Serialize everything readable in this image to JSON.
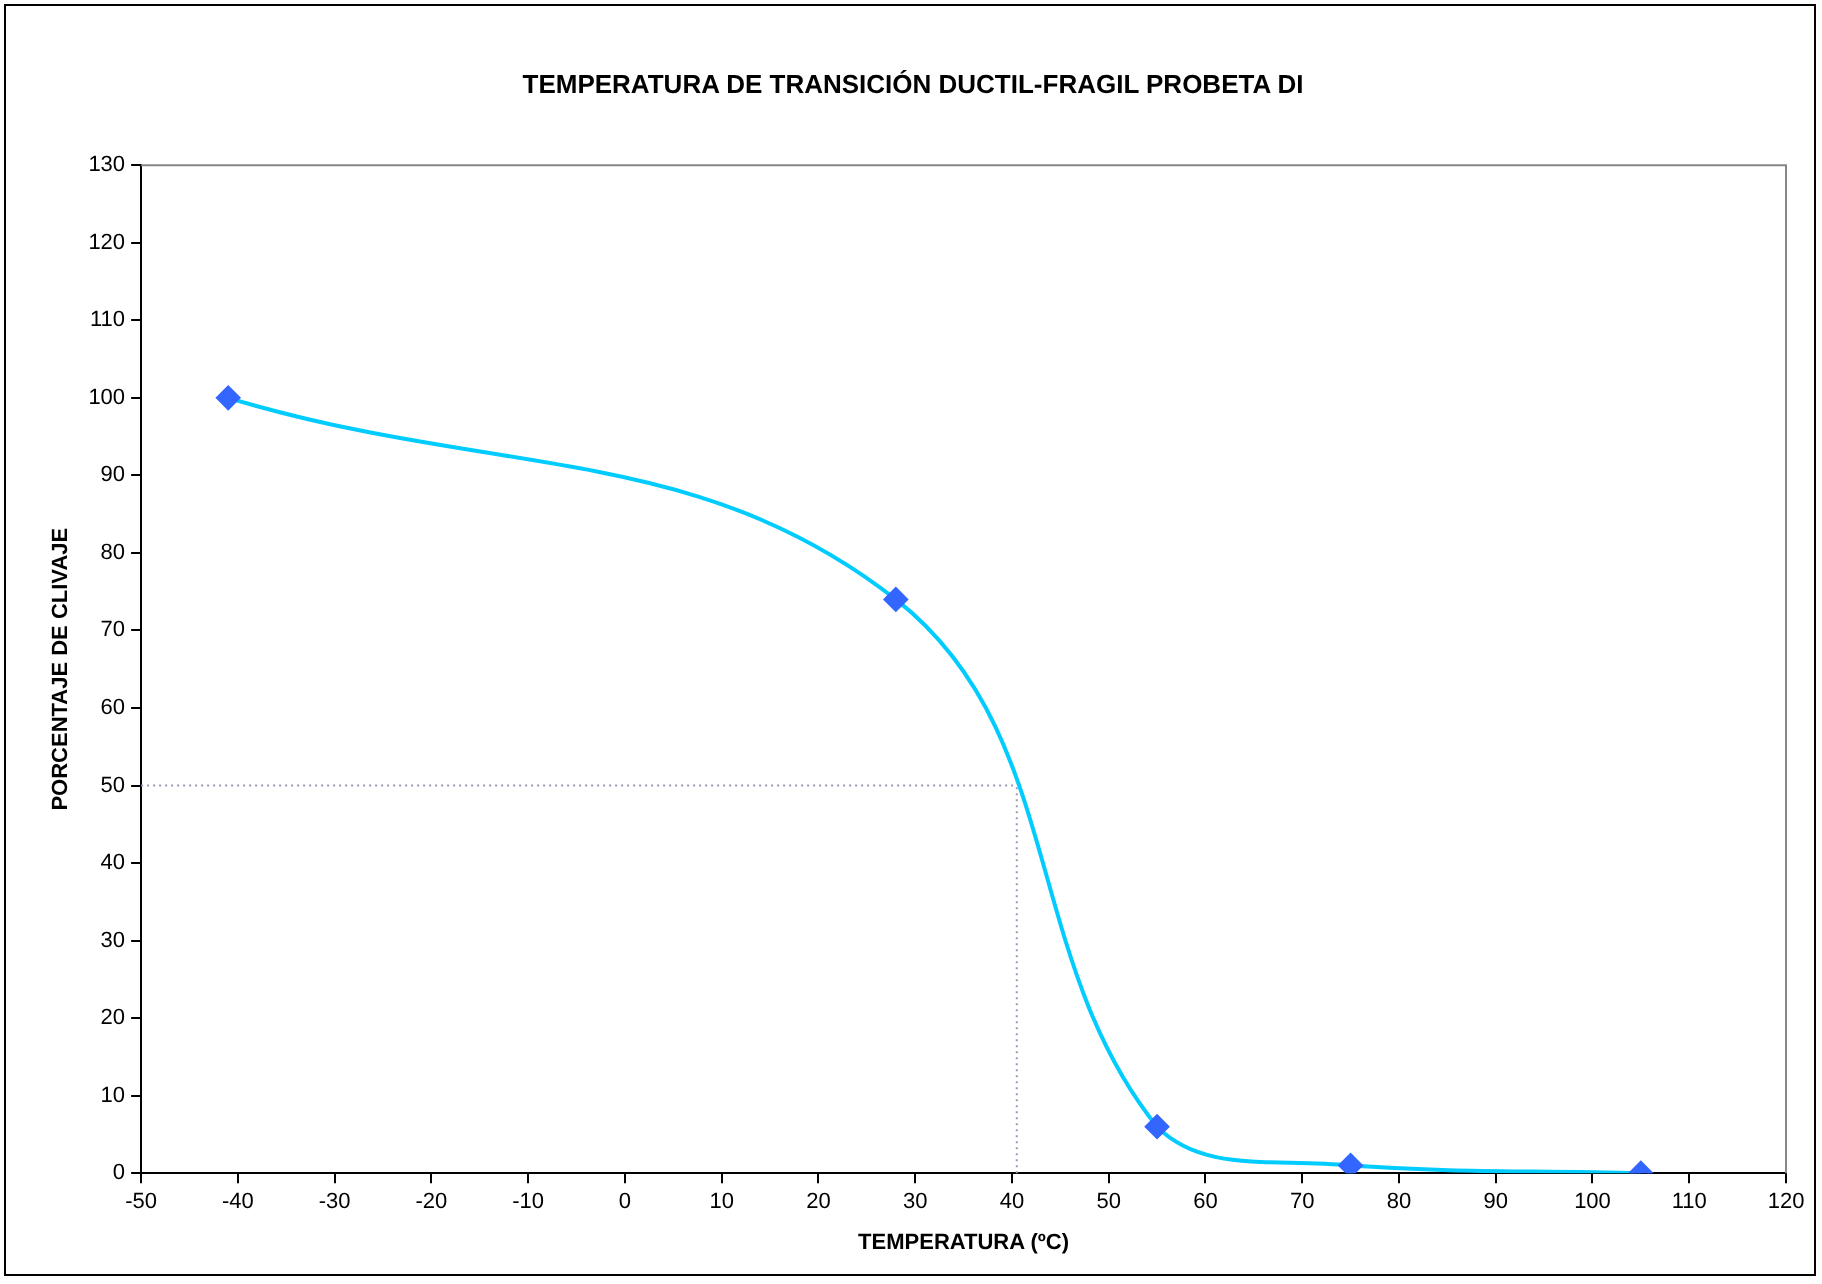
{
  "chart_data": {
    "type": "line",
    "title": "TEMPERATURA DE TRANSICIÓN DUCTIL-FRAGIL PROBETA DI",
    "xlabel": "TEMPERATURA (ºC)",
    "ylabel": "PORCENTAJE DE CLIVAJE",
    "x": [
      -41,
      28,
      55,
      75,
      105
    ],
    "series": [
      {
        "color": "#00ccff",
        "colors": [
          "#3366ff",
          "#3366ff",
          "#3366ff",
          "#3366ff",
          "#3366ff"
        ],
        "values": [
          100,
          74,
          6,
          1,
          0
        ]
      }
    ],
    "xlim": [
      -50,
      120
    ],
    "xticks": [
      -50,
      -40,
      -30,
      -20,
      -10,
      0,
      10,
      20,
      30,
      40,
      50,
      60,
      70,
      80,
      90,
      100,
      110,
      120
    ],
    "ylim": [
      0,
      130
    ],
    "yticks": [
      0,
      10,
      20,
      30,
      40,
      50,
      60,
      70,
      80,
      90,
      100,
      110,
      120,
      130
    ],
    "ref_lines": [
      {
        "axis": "y",
        "value": 50,
        "color": "#9999bb",
        "line_style": "dotted"
      },
      {
        "axis": "x",
        "value": 40.5,
        "color": "#9999bb",
        "line_style": "dotted"
      }
    ],
    "marker": "diamond",
    "line_style": "solid",
    "grid": false,
    "legend": false
  }
}
